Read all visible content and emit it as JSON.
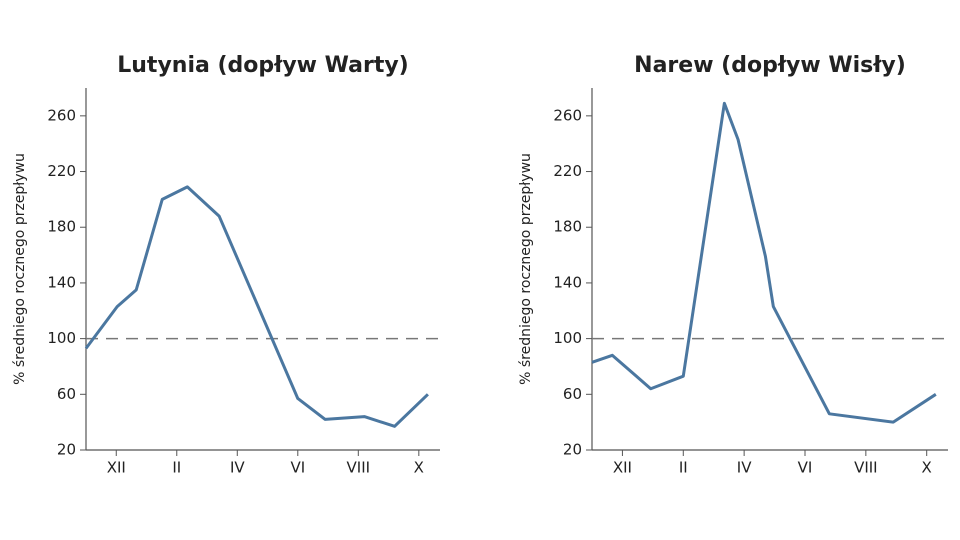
{
  "chart_data": [
    {
      "type": "line",
      "title": "Lutynia (dopływ Warty)",
      "ylabel": "% średniego rocznego przepływu",
      "x": [
        0,
        1.03,
        1.66,
        2.52,
        3.35,
        4.4,
        7.0,
        7.9,
        9.2,
        10.2,
        11.3
      ],
      "series": [
        {
          "name": "Lutynia",
          "color": "#4b77a0",
          "values": [
            93,
            123,
            135,
            200,
            209,
            188,
            57,
            42,
            44,
            37,
            60
          ]
        }
      ],
      "xlim": [
        0,
        11.7
      ],
      "xticks": [
        {
          "value": 1,
          "label": "XII"
        },
        {
          "value": 3,
          "label": "II"
        },
        {
          "value": 5,
          "label": "IV"
        },
        {
          "value": 7,
          "label": "VI"
        },
        {
          "value": 9,
          "label": "VIII"
        },
        {
          "value": 11,
          "label": "X"
        }
      ],
      "ylim": [
        20,
        280
      ],
      "yticks": [
        20,
        60,
        100,
        140,
        180,
        220,
        260
      ],
      "reference_line": 100
    },
    {
      "type": "line",
      "title": "Narew (dopływ Wisły)",
      "ylabel": "% średniego rocznego przepływu",
      "x": [
        0,
        0.67,
        1.93,
        3.0,
        4.35,
        4.8,
        5.7,
        5.96,
        7.8,
        9.9,
        11.3
      ],
      "series": [
        {
          "name": "Narew",
          "color": "#4b77a0",
          "values": [
            83,
            88,
            64,
            73,
            269,
            243,
            159,
            123,
            46,
            40,
            60
          ]
        }
      ],
      "xlim": [
        0,
        11.7
      ],
      "xticks": [
        {
          "value": 1,
          "label": "XII"
        },
        {
          "value": 3,
          "label": "II"
        },
        {
          "value": 5,
          "label": "IV"
        },
        {
          "value": 7,
          "label": "VI"
        },
        {
          "value": 9,
          "label": "VIII"
        },
        {
          "value": 11,
          "label": "X"
        }
      ],
      "ylim": [
        20,
        280
      ],
      "yticks": [
        20,
        60,
        100,
        140,
        180,
        220,
        260
      ],
      "reference_line": 100
    }
  ]
}
